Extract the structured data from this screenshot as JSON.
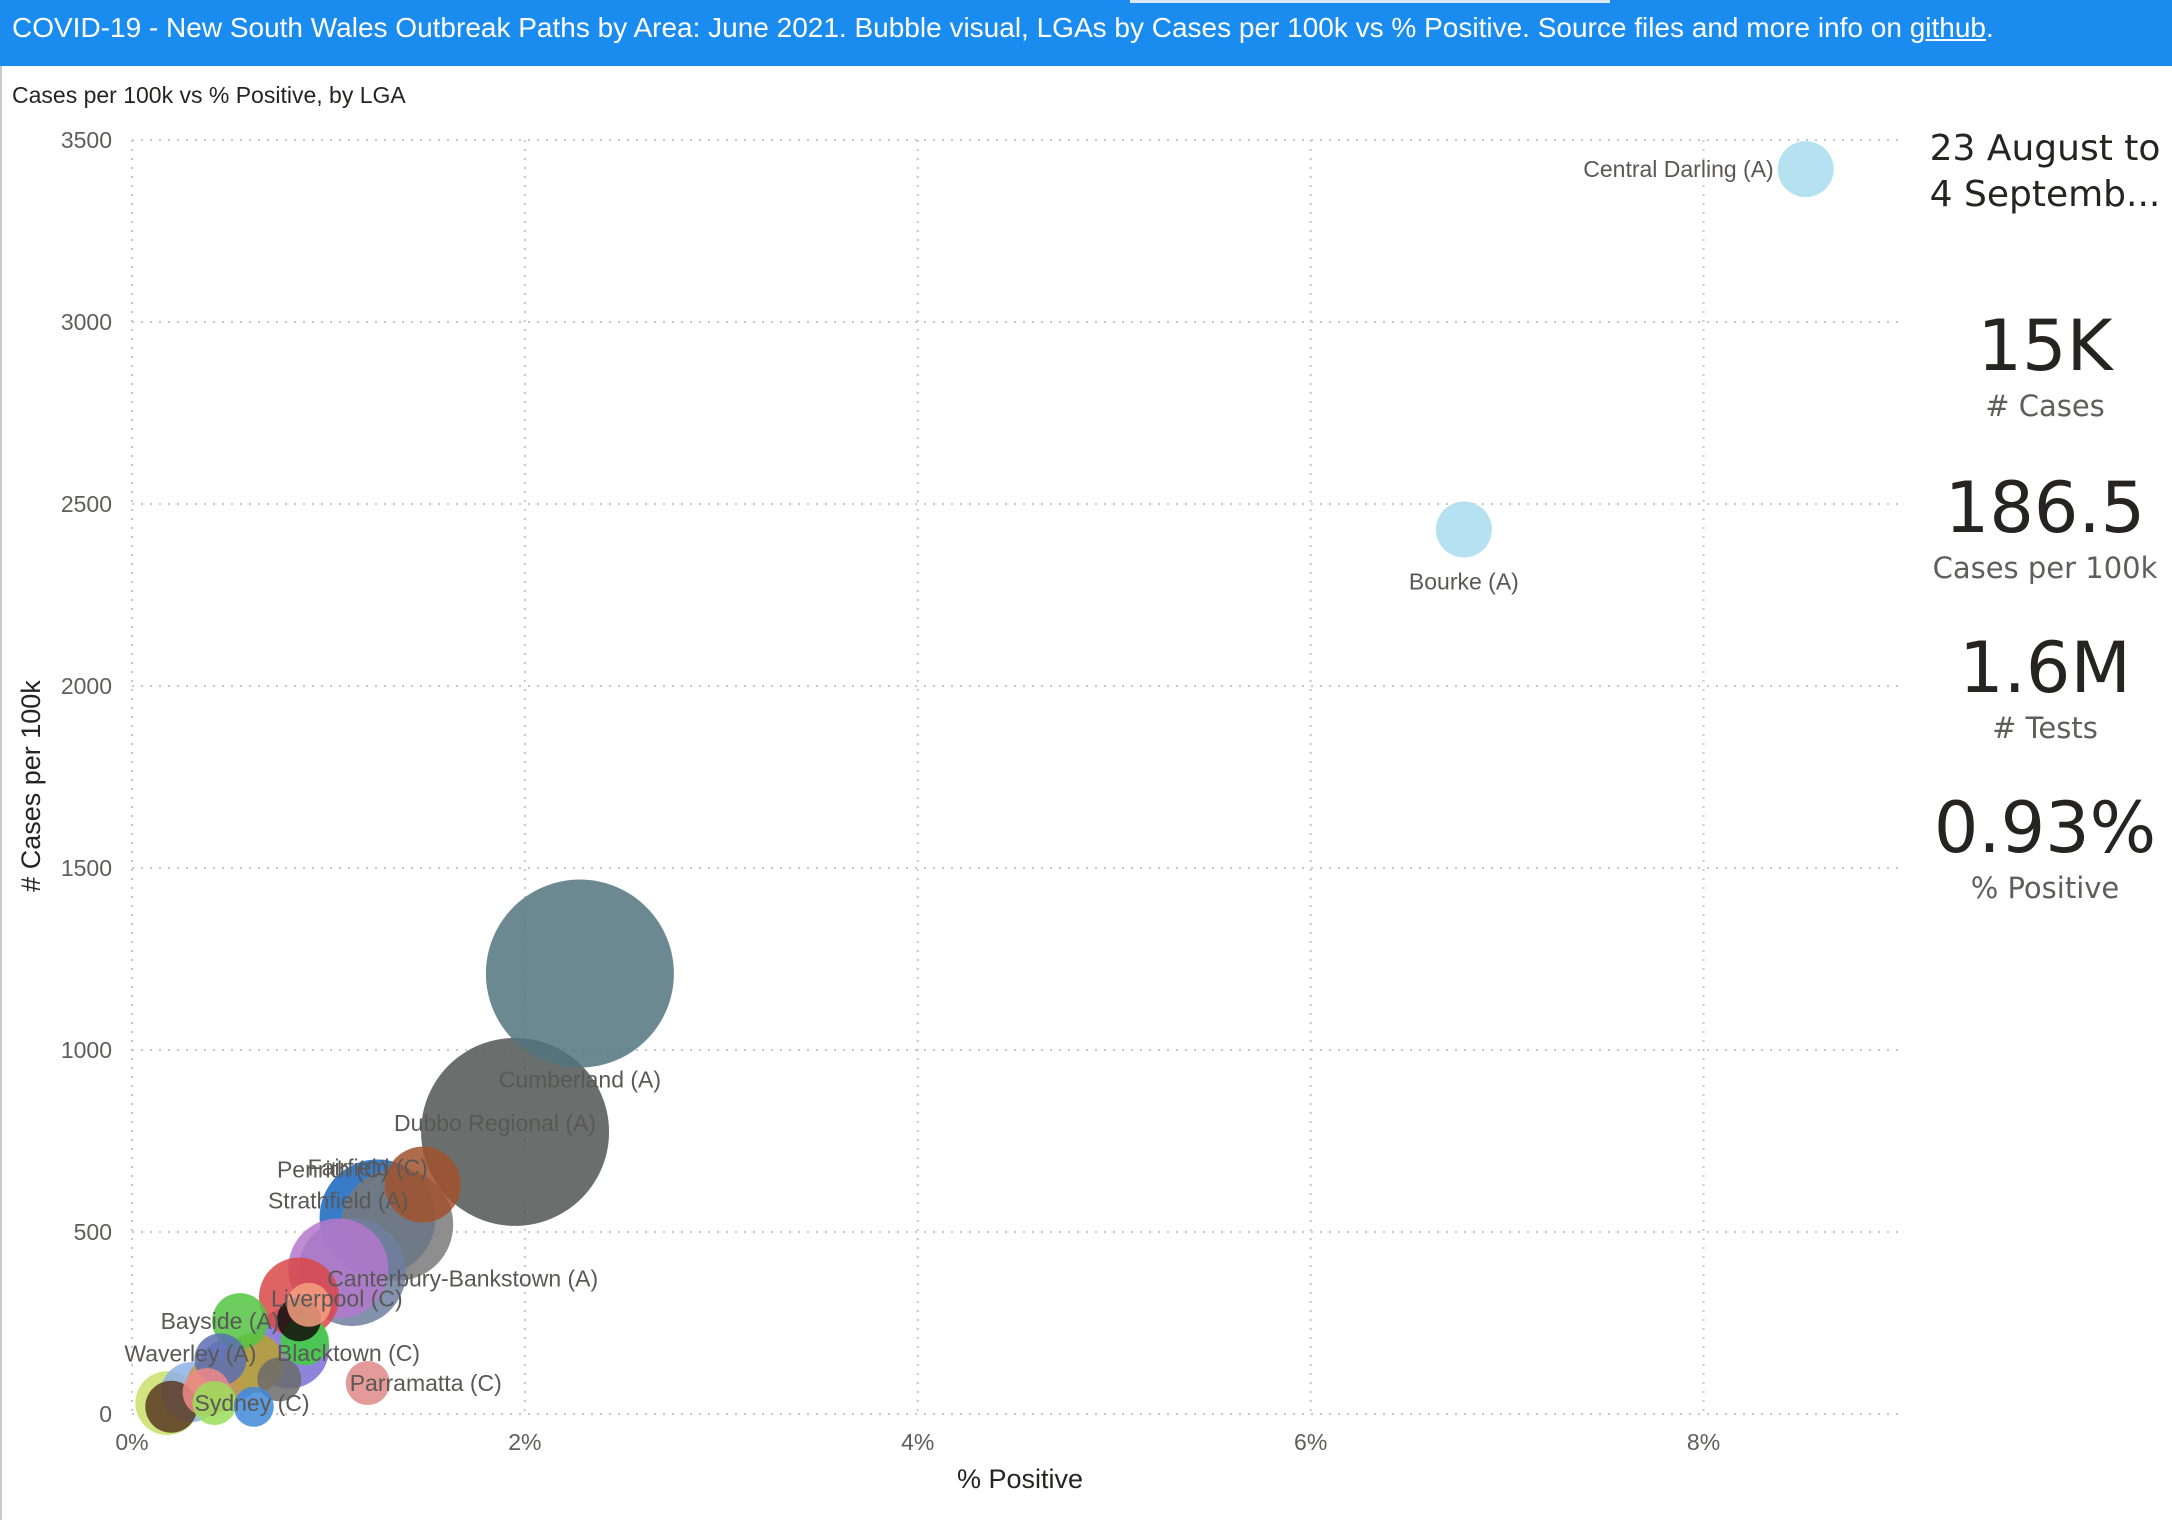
{
  "header": {
    "text": "COVID-19  - New South Wales Outbreak Paths by Area: June 2021.  Bubble visual, LGAs by Cases per 100k vs % Positive. Source files and more info on ",
    "link_label": "github",
    "suffix": "."
  },
  "chart_title": "Cases per 100k vs % Positive, by LGA",
  "kpis": {
    "date_range": "23 August to 4 Septemb...",
    "cases_value": "15K",
    "cases_label": "# Cases",
    "cp100k_value": "186.5",
    "cp100k_label": "Cases per 100k",
    "tests_value": "1.6M",
    "tests_label": "# Tests",
    "positive_value": "0.93%",
    "positive_label": "% Positive"
  },
  "chart_data": {
    "type": "scatter",
    "xlabel": "% Positive",
    "ylabel": "# Cases per 100k",
    "xlim": [
      0,
      9
    ],
    "ylim": [
      0,
      3500
    ],
    "x_ticks": [
      0,
      2,
      4,
      6,
      8
    ],
    "x_tick_labels": [
      "0%",
      "2%",
      "4%",
      "6%",
      "8%"
    ],
    "y_ticks": [
      0,
      500,
      1000,
      1500,
      2000,
      2500,
      3000,
      3500
    ],
    "y_tick_labels": [
      "0",
      "500",
      "1000",
      "1500",
      "2000",
      "2500",
      "3000",
      "3500"
    ],
    "grid": true,
    "points": [
      {
        "x": 0.18,
        "y": 30,
        "size": 32,
        "color": "#c8e06a",
        "label": ""
      },
      {
        "x": 0.3,
        "y": 60,
        "size": 30,
        "color": "#8fb0e8",
        "label": ""
      },
      {
        "x": 0.2,
        "y": 20,
        "size": 26,
        "color": "#5b3a22",
        "label": ""
      },
      {
        "x": 0.42,
        "y": 80,
        "size": 28,
        "color": "#c49a4a",
        "label": ""
      },
      {
        "x": 0.38,
        "y": 60,
        "size": 24,
        "color": "#f08a8a",
        "label": ""
      },
      {
        "x": 0.5,
        "y": 120,
        "size": 32,
        "color": "#8a7fd0",
        "label": ""
      },
      {
        "x": 0.45,
        "y": 150,
        "size": 26,
        "color": "#5a6fb0",
        "label": "Waverley (A)"
      },
      {
        "x": 0.75,
        "y": 95,
        "size": 22,
        "color": "#6b6b6b",
        "label": ""
      },
      {
        "x": 0.62,
        "y": 140,
        "size": 30,
        "color": "#b9a230",
        "label": ""
      },
      {
        "x": 0.8,
        "y": 180,
        "size": 40,
        "color": "#7b6fd6",
        "label": ""
      },
      {
        "x": 0.55,
        "y": 255,
        "size": 28,
        "color": "#52c442",
        "label": "Bayside (A)"
      },
      {
        "x": 0.88,
        "y": 200,
        "size": 24,
        "color": "#3fd13c",
        "label": "Blacktown (C)"
      },
      {
        "x": 0.85,
        "y": 260,
        "size": 22,
        "color": "#111111",
        "label": ""
      },
      {
        "x": 0.85,
        "y": 320,
        "size": 40,
        "color": "#d84848",
        "label": "Liverpool (C)"
      },
      {
        "x": 0.9,
        "y": 300,
        "size": 22,
        "color": "#f4a080",
        "label": ""
      },
      {
        "x": 1.05,
        "y": 400,
        "size": 50,
        "color": "#b478cc",
        "label": "Strathfield (A)"
      },
      {
        "x": 1.12,
        "y": 390,
        "size": 54,
        "color": "#6f7fa0",
        "label": ""
      },
      {
        "x": 1.35,
        "y": 520,
        "size": 56,
        "color": "#7a7a7a",
        "label": "Canterbury-Bankstown (A)"
      },
      {
        "x": 1.25,
        "y": 540,
        "size": 58,
        "color": "#1565c0",
        "label": "Penrith (C)"
      },
      {
        "x": 1.48,
        "y": 630,
        "size": 38,
        "color": "#a0522d",
        "label": "Fairfield (C)"
      },
      {
        "x": 1.2,
        "y": 85,
        "size": 22,
        "color": "#e08888",
        "label": "Parramatta (C)"
      },
      {
        "x": 0.42,
        "y": 30,
        "size": 22,
        "color": "#9adf5a",
        "label": "Sydney (C)"
      },
      {
        "x": 0.62,
        "y": 20,
        "size": 20,
        "color": "#3f8ad8",
        "label": ""
      },
      {
        "x": 1.95,
        "y": 775,
        "size": 94,
        "color": "#505655",
        "label": "Dubbo Regional (A)"
      },
      {
        "x": 2.28,
        "y": 1210,
        "size": 94,
        "color": "#52747e",
        "label": "Cumberland (A)"
      },
      {
        "x": 6.78,
        "y": 2430,
        "size": 28,
        "color": "#a9dcef",
        "label": "Bourke (A)"
      },
      {
        "x": 8.52,
        "y": 3420,
        "size": 28,
        "color": "#a9dcef",
        "label": "Central Darling (A)"
      }
    ]
  }
}
